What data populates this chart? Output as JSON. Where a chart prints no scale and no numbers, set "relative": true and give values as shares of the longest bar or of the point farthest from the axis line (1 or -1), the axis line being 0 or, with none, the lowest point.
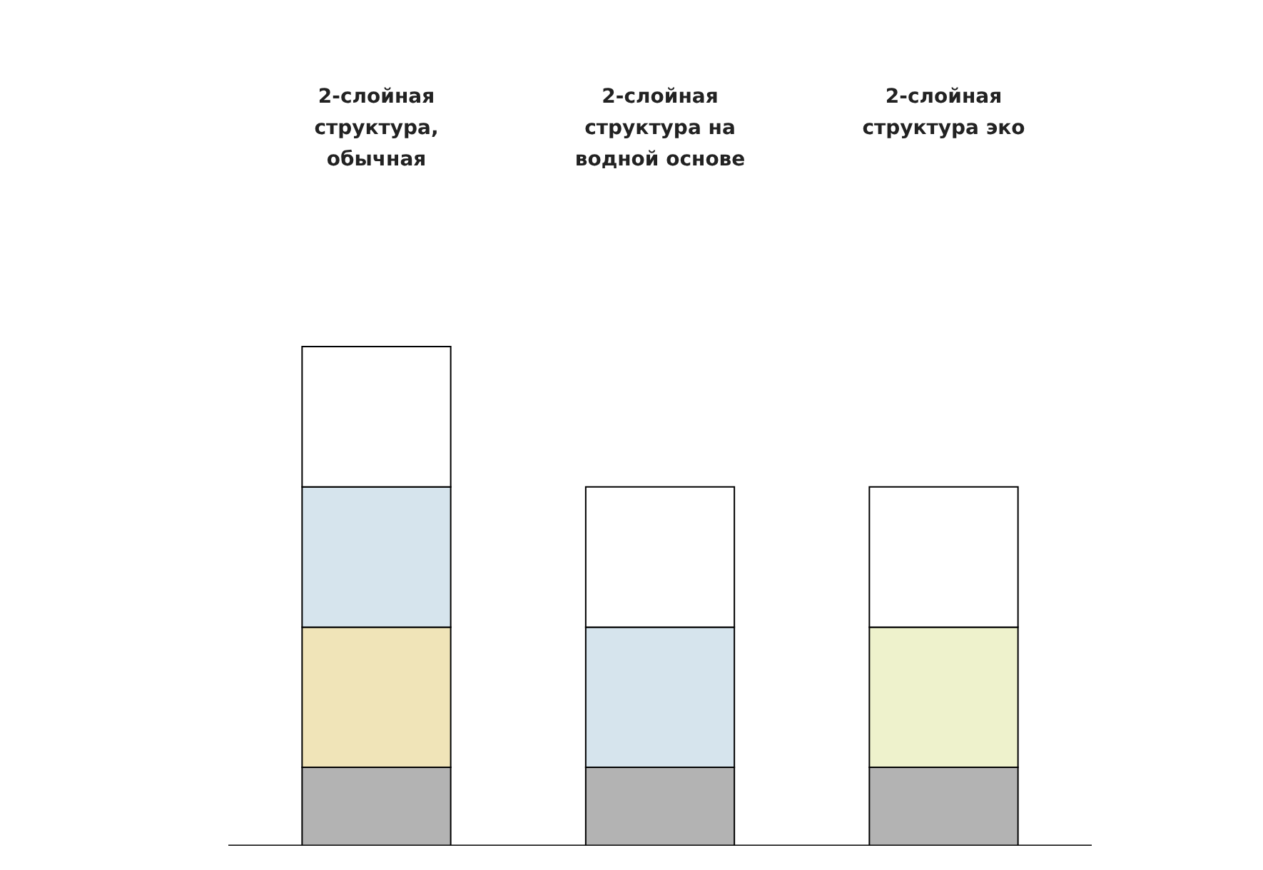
{
  "chart_data": {
    "type": "bar",
    "stacked": true,
    "relative": true,
    "categories": [
      "2-слойная структура, обычная",
      "2-слойная структура на водной основе",
      "2-слойная структура эко"
    ],
    "series": [
      {
        "color": "#b3b3b3",
        "values": [
          0.157,
          0.157,
          0.157
        ]
      },
      {
        "colors": [
          "#f0e4b8",
          "#d6e4ed",
          "#eef2cc"
        ],
        "values": [
          0.281,
          0.281,
          0.281
        ]
      },
      {
        "colors": [
          "#d6e4ed",
          "#ffffff",
          "#ffffff"
        ],
        "values": [
          0.281,
          0.281,
          0.281
        ]
      },
      {
        "color": "#ffffff",
        "values": [
          0.281,
          null,
          null
        ]
      }
    ]
  }
}
